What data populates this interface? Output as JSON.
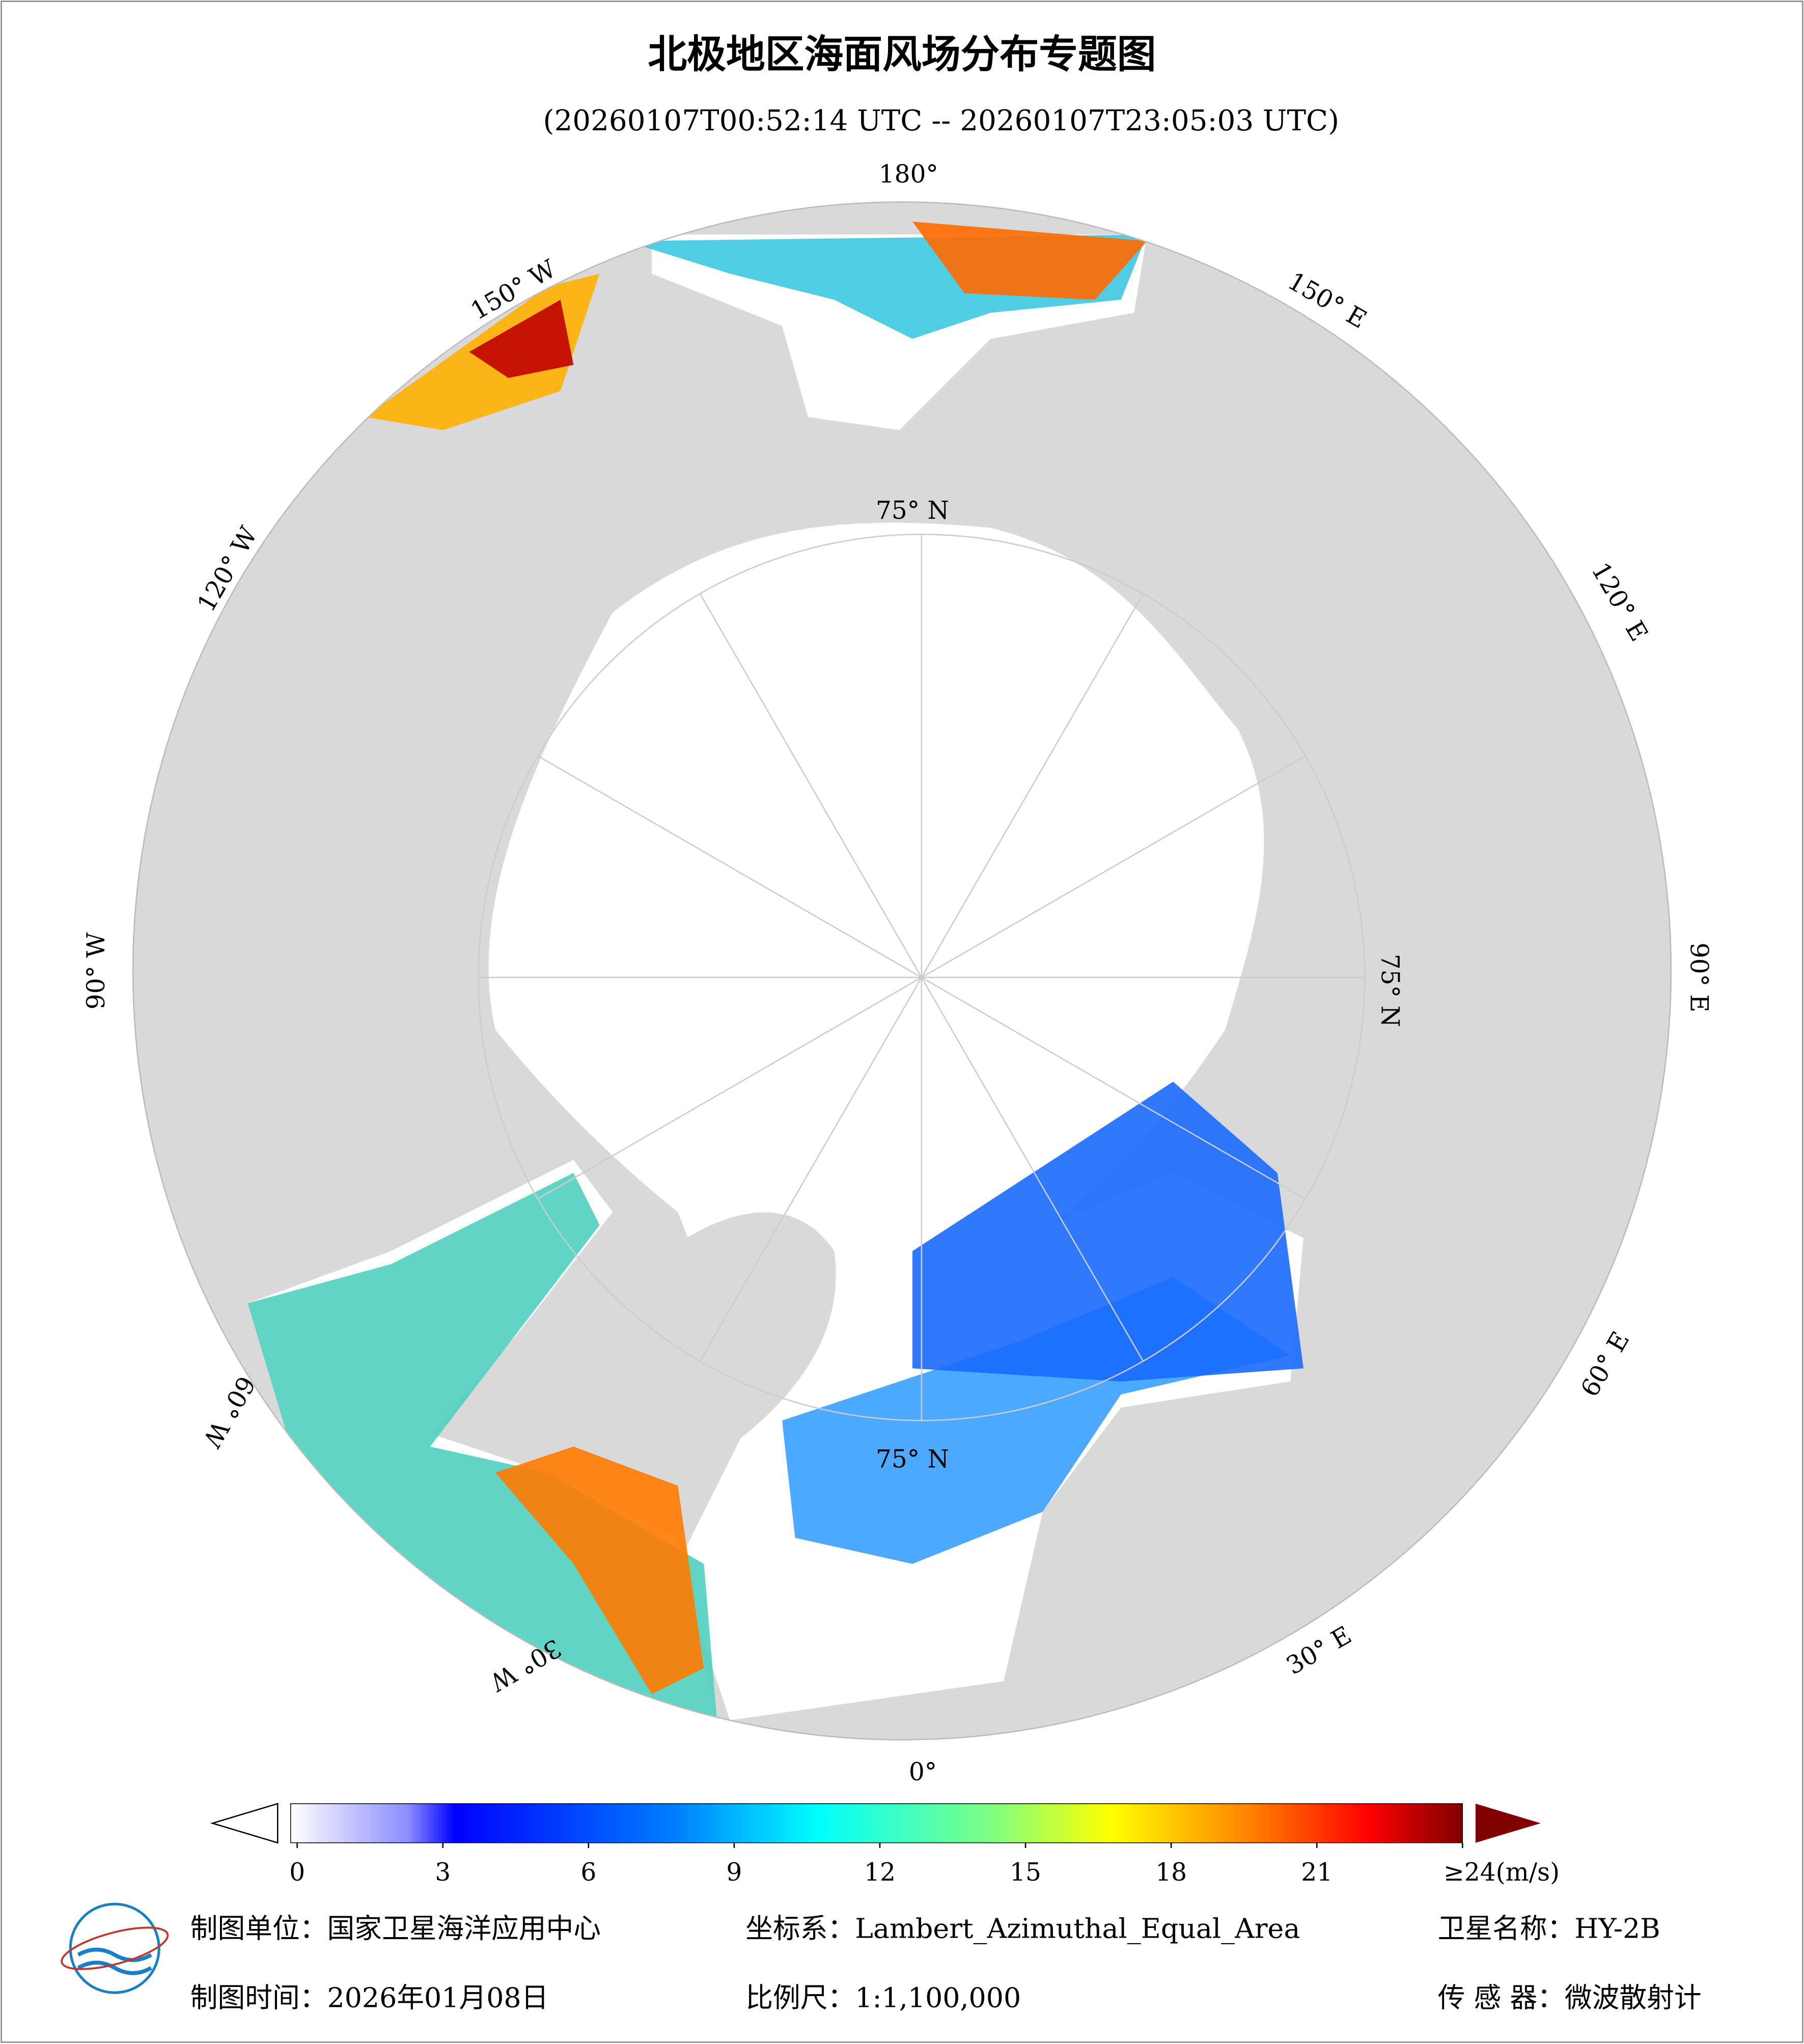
{
  "title": "北极地区海面风场分布专题图",
  "subtitle": "(20260107T00:52:14 UTC -- 20260107T23:05:03 UTC)",
  "map": {
    "longitude_labels": [
      "180°",
      "150° E",
      "120° E",
      "90° E",
      "60° E",
      "30° E",
      "0°",
      "30° W",
      "60° W",
      "90° W",
      "120° W",
      "150° W"
    ],
    "latitude_labels": [
      "75° N",
      "75° N",
      "75° N"
    ]
  },
  "colorbar": {
    "lim": [
      0,
      24
    ],
    "ticks": [
      0,
      3,
      6,
      9,
      12,
      15,
      18,
      21,
      {
        "value": 24,
        "label": "≥24(m/s)"
      }
    ]
  },
  "footer": {
    "unit": "制图单位：国家卫星海洋应用中心",
    "crs": "坐标系：Lambert_Azimuthal_Equal_Area",
    "satellite": "卫星名称：HY-2B",
    "date": "制图时间：2026年01月08日",
    "scale": "比例尺：1:1,100,000",
    "sensor": "传 感 器：微波散射计"
  }
}
